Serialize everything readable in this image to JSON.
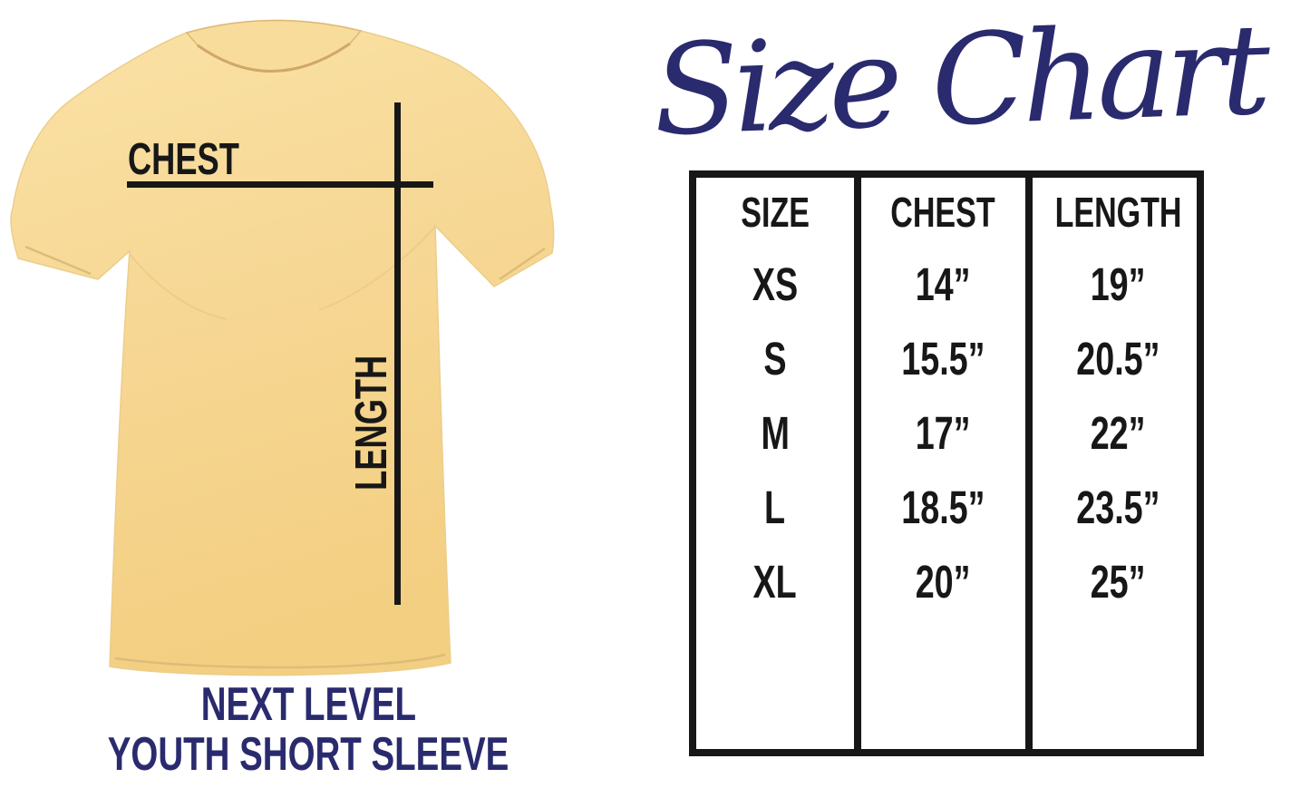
{
  "title": {
    "text": "Size Chart"
  },
  "shirt_diagram": {
    "chest_label": "CHEST",
    "length_label": "LENGTH"
  },
  "brand": {
    "line1": "NEXT LEVEL",
    "line2": "YOUTH SHORT SLEEVE"
  },
  "colors": {
    "navy": "#2a2a6e",
    "line_black": "#171717",
    "shirt_yellow": "#f5d38a"
  },
  "chart_data": {
    "type": "table",
    "title": "Size Chart",
    "columns": [
      "SIZE",
      "CHEST",
      "LENGTH"
    ],
    "rows": [
      [
        "XS",
        "14”",
        "19”"
      ],
      [
        "S",
        "15.5”",
        "20.5”"
      ],
      [
        "M",
        "17”",
        "22”"
      ],
      [
        "L",
        "18.5”",
        "23.5”"
      ],
      [
        "XL",
        "20”",
        "25”"
      ]
    ]
  }
}
